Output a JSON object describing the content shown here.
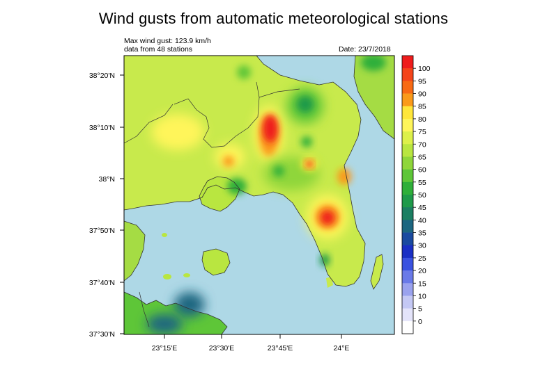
{
  "title": "Wind gusts from automatic meteorological stations",
  "subtitle": {
    "max_gust": "Max wind gust: 123.9 km/h",
    "stations": "data from 48 stations",
    "date": "Date: 23/7/2018"
  },
  "axes": {
    "lat_ticks": [
      "38°20'N",
      "38°10'N",
      "38°N",
      "37°50'N",
      "37°40'N",
      "37°30'N"
    ],
    "lon_ticks": [
      "23°15'E",
      "23°30'E",
      "23°45'E",
      "24°E"
    ]
  },
  "colorbar": {
    "labels": [
      "100",
      "95",
      "90",
      "85",
      "80",
      "75",
      "70",
      "65",
      "60",
      "55",
      "50",
      "45",
      "40",
      "35",
      "30",
      "25",
      "20",
      "15",
      "10",
      "5",
      "0"
    ],
    "colors": [
      "#ee1c1c",
      "#f4441a",
      "#f86a14",
      "#fa9a1a",
      "#ffe63a",
      "#fff55a",
      "#ddf04a",
      "#b9e640",
      "#8fd63a",
      "#5ec638",
      "#2faf3a",
      "#1f9a4a",
      "#1c7f62",
      "#1c6680",
      "#1a4aa0",
      "#1a2fc4",
      "#3a52e0",
      "#6a7ae8",
      "#9aa2ee",
      "#c4c8f4",
      "#e4e4fa",
      "#ffffff"
    ]
  },
  "colors": {
    "sea": "#aed8e6",
    "land_base": "#c8ea4c"
  }
}
